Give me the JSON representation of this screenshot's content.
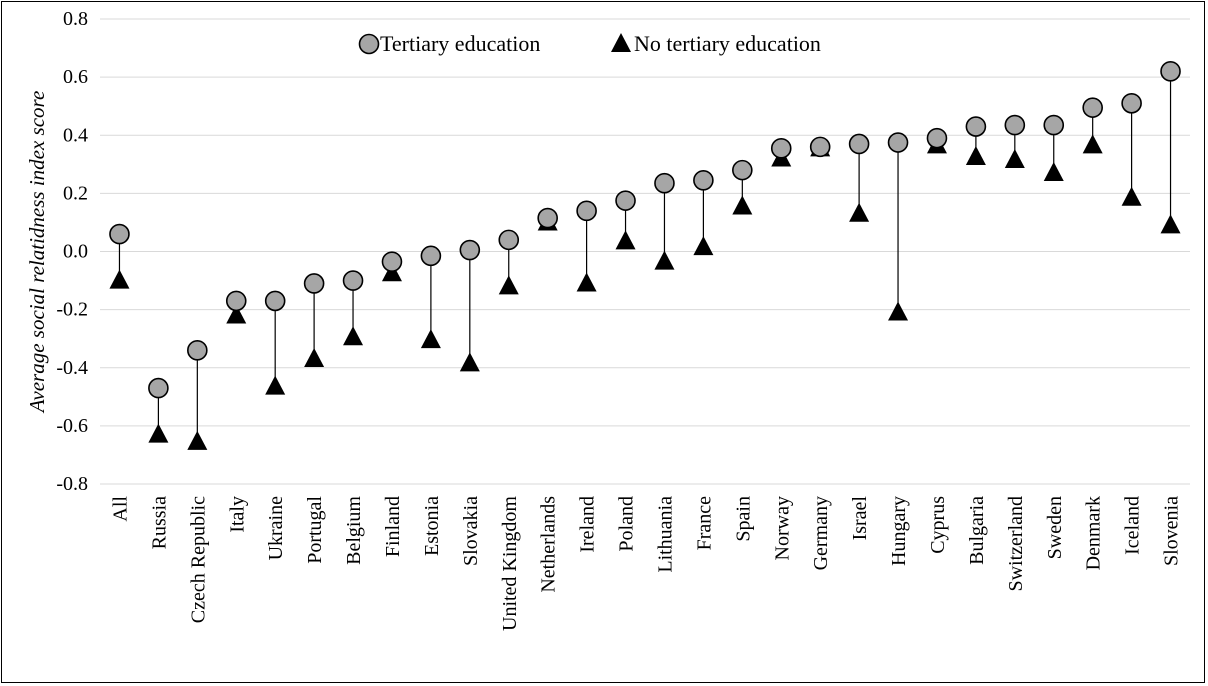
{
  "chart_data": {
    "type": "scatter",
    "title": "",
    "xlabel": "",
    "ylabel": "Average social relatidness index score",
    "ylim": [
      -0.8,
      0.8
    ],
    "yticks": [
      "0.8",
      "0.6",
      "0.4",
      "0.2",
      "0.0",
      "-0.2",
      "-0.4",
      "-0.6",
      "-0.8"
    ],
    "grid": true,
    "legend_position": "top-center",
    "categories": [
      "All",
      "Russia",
      "Czech Republic",
      "Italy",
      "Ukraine",
      "Portugal",
      "Belgium",
      "Finland",
      "Estonia",
      "Slovakia",
      "United Kingdom",
      "Netherlands",
      "Ireland",
      "Poland",
      "Lithuania",
      "France",
      "Spain",
      "Norway",
      "Germany",
      "Israel",
      "Hungary",
      "Cyprus",
      "Bulgaria",
      "Switzerland",
      "Sweden",
      "Denmark",
      "Iceland",
      "Slovenia"
    ],
    "series": [
      {
        "name": "Tertiary education",
        "marker": "circle",
        "color": "#a6a6a6",
        "values": [
          0.06,
          -0.47,
          -0.34,
          -0.17,
          -0.17,
          -0.11,
          -0.1,
          -0.035,
          -0.015,
          0.005,
          0.04,
          0.115,
          0.14,
          0.175,
          0.235,
          0.245,
          0.28,
          0.355,
          0.36,
          0.37,
          0.375,
          0.39,
          0.43,
          0.435,
          0.435,
          0.495,
          0.51,
          0.62
        ]
      },
      {
        "name": "No tertiary education",
        "marker": "triangle",
        "color": "#000000",
        "values": [
          -0.1,
          -0.63,
          -0.655,
          -0.22,
          -0.465,
          -0.37,
          -0.295,
          -0.075,
          -0.305,
          -0.385,
          -0.12,
          0.1,
          -0.11,
          0.035,
          -0.035,
          0.015,
          0.155,
          0.32,
          0.355,
          0.13,
          -0.21,
          0.365,
          0.325,
          0.315,
          0.27,
          0.365,
          0.185,
          0.09
        ]
      }
    ]
  }
}
